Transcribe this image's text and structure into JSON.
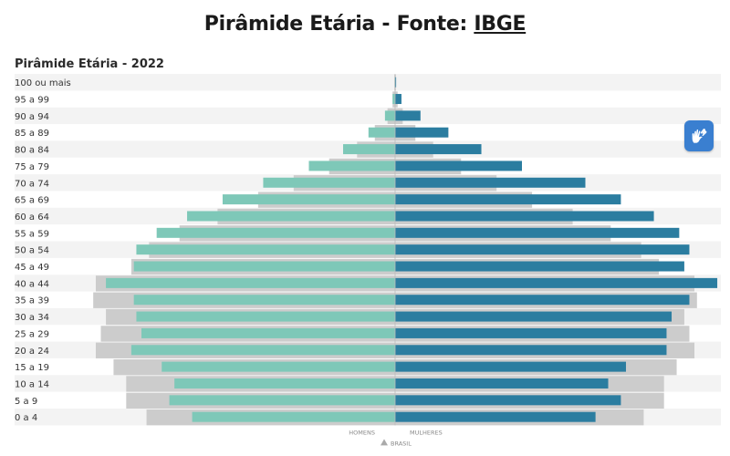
{
  "header": {
    "title_prefix": "Pirâmide Etária - Fonte: ",
    "title_link": "IBGE"
  },
  "accessibility": {
    "libras_icon": "hands-sign-language-icon"
  },
  "colors": {
    "men": "#7ec8b8",
    "women": "#2b7da0",
    "reference": "#cccccc",
    "row_stripe": "#f3f3f3"
  },
  "chart_data": {
    "type": "bar",
    "subtype": "population-pyramid",
    "title": "Pirâmide Etária - 2022",
    "categories": [
      "100 ou mais",
      "95 a 99",
      "90 a 94",
      "85 a 89",
      "80 a 84",
      "75 a 79",
      "70 a 74",
      "65 a 69",
      "60 a 64",
      "55 a 59",
      "50 a 54",
      "45 a 49",
      "40 a 44",
      "35 a 39",
      "30 a 34",
      "25 a 29",
      "20 a 24",
      "15 a 19",
      "10 a 14",
      "5 a 9",
      "0 a 4"
    ],
    "series": [
      {
        "name": "HOMENS",
        "values": [
          0.2,
          1.0,
          4.0,
          10.5,
          20.5,
          34.0,
          52.0,
          68.0,
          82.0,
          94.0,
          102.0,
          103.0,
          114.0,
          103.0,
          102.0,
          100.0,
          104.0,
          92.0,
          87.0,
          89.0,
          80.0
        ]
      },
      {
        "name": "MULHERES",
        "values": [
          0.4,
          2.5,
          10.0,
          21.0,
          34.0,
          50.0,
          75.0,
          89.0,
          102.0,
          112.0,
          116.0,
          114.0,
          127.0,
          116.0,
          109.0,
          107.0,
          107.0,
          91.0,
          84.0,
          89.0,
          79.0
        ]
      },
      {
        "name": "BRASIL",
        "values": [
          0.3,
          1.0,
          3.0,
          8.0,
          15.0,
          26.0,
          40.0,
          54.0,
          70.0,
          85.0,
          97.0,
          104.0,
          118.0,
          119.0,
          114.0,
          116.0,
          118.0,
          111.0,
          106.0,
          106.0,
          98.0
        ]
      }
    ],
    "xlim": [
      -120,
      128
    ],
    "legend": {
      "left_label": "HOMENS",
      "right_label": "MULHERES",
      "marker_label": "BRASIL",
      "placement": "bottom-center"
    },
    "grid": false
  }
}
